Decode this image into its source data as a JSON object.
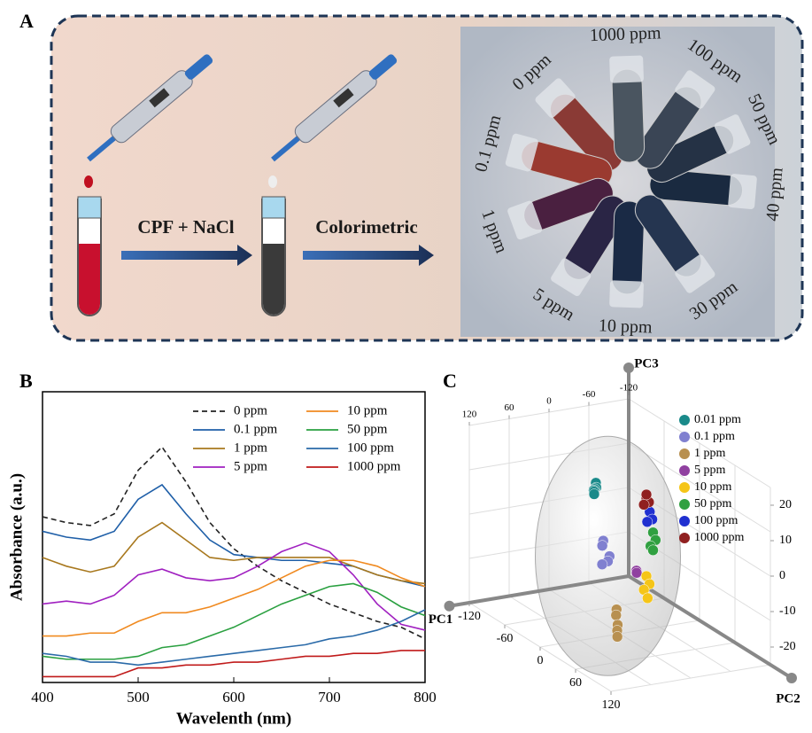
{
  "panel_a": {
    "label": "A",
    "step1": "CPF + NaCl",
    "step2": "Colorimetric",
    "photo_labels": [
      "0 ppm",
      "0.1 ppm",
      "1 ppm",
      "5 ppm",
      "10 ppm",
      "30 ppm",
      "40 ppm",
      "50 ppm",
      "100 ppm",
      "1000 ppm"
    ]
  },
  "chart_data": [
    {
      "type": "line",
      "label": "B",
      "x_label": "Wavelenth (nm)",
      "y_label": "Absorbance (a.u.)",
      "x": [
        400,
        425,
        450,
        475,
        500,
        525,
        550,
        575,
        600,
        625,
        650,
        675,
        700,
        725,
        750,
        775,
        800
      ],
      "xlim": [
        400,
        800
      ],
      "xticks": [
        400,
        500,
        600,
        700,
        800
      ],
      "ylim": [
        0,
        1
      ],
      "series": [
        {
          "name": "0 ppm",
          "color": "#222222",
          "dashed": true,
          "values": [
            0.57,
            0.55,
            0.54,
            0.58,
            0.73,
            0.81,
            0.69,
            0.55,
            0.46,
            0.4,
            0.35,
            0.31,
            0.27,
            0.24,
            0.21,
            0.19,
            0.15
          ]
        },
        {
          "name": "0.1 ppm",
          "color": "#1f5fa8",
          "dashed": false,
          "values": [
            0.52,
            0.5,
            0.49,
            0.52,
            0.63,
            0.68,
            0.58,
            0.49,
            0.44,
            0.43,
            0.42,
            0.42,
            0.41,
            0.4,
            0.37,
            0.35,
            0.33
          ]
        },
        {
          "name": "1 ppm",
          "color": "#a8781e",
          "dashed": false,
          "values": [
            0.43,
            0.4,
            0.38,
            0.4,
            0.5,
            0.55,
            0.49,
            0.43,
            0.42,
            0.43,
            0.43,
            0.43,
            0.43,
            0.4,
            0.37,
            0.35,
            0.34
          ]
        },
        {
          "name": "5 ppm",
          "color": "#a020c0",
          "dashed": false,
          "values": [
            0.27,
            0.28,
            0.27,
            0.3,
            0.37,
            0.39,
            0.36,
            0.35,
            0.36,
            0.4,
            0.45,
            0.48,
            0.45,
            0.37,
            0.27,
            0.2,
            0.18
          ]
        },
        {
          "name": "10 ppm",
          "color": "#f08a20",
          "dashed": false,
          "values": [
            0.16,
            0.16,
            0.17,
            0.17,
            0.21,
            0.24,
            0.24,
            0.26,
            0.29,
            0.32,
            0.36,
            0.4,
            0.42,
            0.42,
            0.4,
            0.36,
            0.33
          ]
        },
        {
          "name": "50 ppm",
          "color": "#2aa040",
          "dashed": false,
          "values": [
            0.09,
            0.08,
            0.08,
            0.08,
            0.09,
            0.12,
            0.13,
            0.16,
            0.19,
            0.23,
            0.27,
            0.3,
            0.33,
            0.34,
            0.31,
            0.26,
            0.23
          ]
        },
        {
          "name": "100 ppm",
          "color": "#2a6aa8",
          "dashed": false,
          "values": [
            0.1,
            0.09,
            0.07,
            0.07,
            0.06,
            0.07,
            0.08,
            0.09,
            0.1,
            0.11,
            0.12,
            0.13,
            0.15,
            0.16,
            0.18,
            0.21,
            0.25
          ]
        },
        {
          "name": "1000 ppm",
          "color": "#c01a1a",
          "dashed": false,
          "values": [
            0.02,
            0.02,
            0.02,
            0.02,
            0.05,
            0.05,
            0.06,
            0.06,
            0.07,
            0.07,
            0.08,
            0.09,
            0.09,
            0.1,
            0.1,
            0.11,
            0.11
          ]
        }
      ]
    },
    {
      "type": "scatter3d",
      "label": "C",
      "x_label": "PC1",
      "y_label": "PC2",
      "z_label": "PC3",
      "xlim": [
        -120,
        120
      ],
      "ylim": [
        -120,
        120
      ],
      "zlim": [
        -25,
        25
      ],
      "xticks": [
        -120,
        -60,
        0,
        60,
        120
      ],
      "yticks": [
        -120,
        -60,
        0,
        60,
        120
      ],
      "zticks": [
        -20,
        -10,
        0,
        10,
        20
      ],
      "series": [
        {
          "name": "0.01 ppm",
          "color": "#1a8a8a",
          "x": [
            45,
            40,
            38,
            35,
            30,
            28
          ],
          "y": [
            10,
            5,
            0,
            -5,
            -10,
            -12
          ],
          "z": [
            20,
            18,
            17,
            16,
            15,
            14
          ]
        },
        {
          "name": "0.1 ppm",
          "color": "#8080d0",
          "x": [
            25,
            22,
            20,
            18,
            24
          ],
          "y": [
            0,
            -5,
            5,
            0,
            -3
          ],
          "z": [
            2,
            0,
            -2,
            -4,
            -5
          ]
        },
        {
          "name": "1 ppm",
          "color": "#b89050",
          "x": [
            5,
            3,
            6,
            4,
            2
          ],
          "y": [
            0,
            -3,
            3,
            0,
            -2
          ],
          "z": [
            -18,
            -20,
            -22,
            -24,
            -26
          ]
        },
        {
          "name": "5 ppm",
          "color": "#9040a0",
          "x": [
            -25,
            -28
          ],
          "y": [
            0,
            -3
          ],
          "z": [
            -8,
            -9
          ]
        },
        {
          "name": "10 ppm",
          "color": "#f5c518",
          "x": [
            -40,
            -42,
            -38,
            -40
          ],
          "y": [
            0,
            3,
            -2,
            2
          ],
          "z": [
            -10,
            -12,
            -14,
            -16
          ]
        },
        {
          "name": "50 ppm",
          "color": "#30a040",
          "x": [
            -50,
            -52,
            -48,
            -50
          ],
          "y": [
            0,
            2,
            -2,
            0
          ],
          "z": [
            2,
            0,
            -2,
            -3
          ]
        },
        {
          "name": "100 ppm",
          "color": "#2030d0",
          "x": [
            -45,
            -47,
            -43
          ],
          "y": [
            0,
            2,
            -2
          ],
          "z": [
            8,
            6,
            5
          ]
        },
        {
          "name": "1000 ppm",
          "color": "#902020",
          "x": [
            -40,
            -42,
            -38,
            -40
          ],
          "y": [
            0,
            2,
            -2,
            0
          ],
          "z": [
            12,
            11,
            10,
            13
          ]
        }
      ]
    }
  ]
}
